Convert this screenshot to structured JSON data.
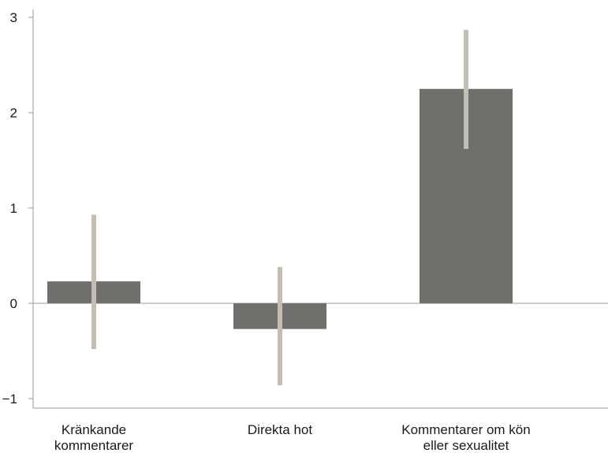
{
  "chart_data": {
    "type": "bar",
    "categories": [
      [
        "Kränkande",
        "kommentarer"
      ],
      [
        "Direkta hot"
      ],
      [
        "Kommentarer om kön",
        "eller sexualitet"
      ]
    ],
    "values": [
      0.23,
      -0.27,
      2.25
    ],
    "error_low": [
      -0.48,
      -0.86,
      1.62
    ],
    "error_high": [
      0.93,
      0.38,
      2.87
    ],
    "ylim": [
      -1.1,
      3.1
    ],
    "yticks": [
      -1,
      0,
      1,
      2,
      3
    ],
    "ytick_labels": [
      "−1",
      "0",
      "1",
      "2",
      "3"
    ],
    "title": "",
    "xlabel": "",
    "ylabel": "",
    "grid": false,
    "colors": {
      "bar": "#6f706b",
      "error": "#c3bdb3",
      "axis": "#9a9a9a"
    }
  }
}
